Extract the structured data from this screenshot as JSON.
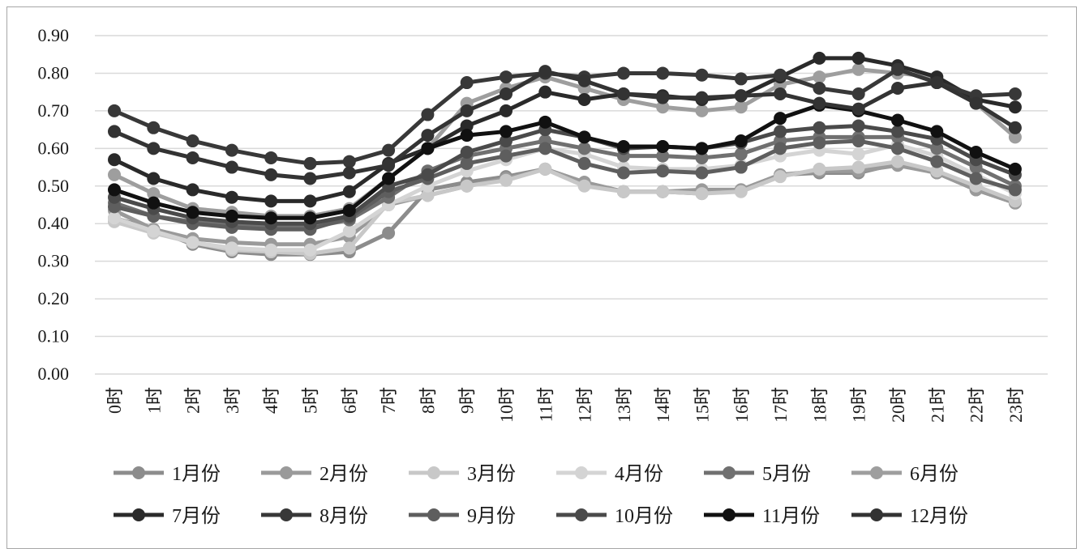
{
  "chart_data": {
    "type": "line",
    "title": "",
    "xlabel": "",
    "ylabel": "",
    "ylim": [
      0,
      0.9
    ],
    "yticks": [
      "0.00",
      "0.10",
      "0.20",
      "0.30",
      "0.40",
      "0.50",
      "0.60",
      "0.70",
      "0.80",
      "0.90"
    ],
    "grid": true,
    "legend_position": "bottom",
    "categories": [
      "0时",
      "1时",
      "2时",
      "3时",
      "4时",
      "5时",
      "6时",
      "7时",
      "8时",
      "9时",
      "10时",
      "11时",
      "12时",
      "13时",
      "14时",
      "15时",
      "16时",
      "17时",
      "18时",
      "19时",
      "20时",
      "21时",
      "22时",
      "23时"
    ],
    "series": [
      {
        "name": "1月份",
        "color": "#8c8c8c",
        "values": [
          0.415,
          0.385,
          0.345,
          0.325,
          0.318,
          0.318,
          0.325,
          0.375,
          0.49,
          0.51,
          0.525,
          0.545,
          0.51,
          0.485,
          0.485,
          0.48,
          0.49,
          0.53,
          0.535,
          0.535,
          0.56,
          0.535,
          0.49,
          0.455
        ]
      },
      {
        "name": "2月份",
        "color": "#9a9a9a",
        "values": [
          0.435,
          0.385,
          0.36,
          0.35,
          0.345,
          0.345,
          0.365,
          0.45,
          0.475,
          0.5,
          0.52,
          0.545,
          0.51,
          0.485,
          0.485,
          0.49,
          0.49,
          0.53,
          0.54,
          0.54,
          0.555,
          0.535,
          0.49,
          0.455
        ]
      },
      {
        "name": "3月份",
        "color": "#c8c8c8",
        "values": [
          0.405,
          0.375,
          0.35,
          0.33,
          0.325,
          0.32,
          0.335,
          0.455,
          0.475,
          0.5,
          0.515,
          0.545,
          0.5,
          0.485,
          0.485,
          0.48,
          0.485,
          0.525,
          0.545,
          0.55,
          0.565,
          0.54,
          0.5,
          0.46
        ]
      },
      {
        "name": "4月份",
        "color": "#d4d4d4",
        "values": [
          0.415,
          0.38,
          0.35,
          0.335,
          0.33,
          0.33,
          0.38,
          0.45,
          0.5,
          0.54,
          0.57,
          0.6,
          0.585,
          0.55,
          0.545,
          0.545,
          0.555,
          0.58,
          0.595,
          0.585,
          0.61,
          0.58,
          0.53,
          0.48
        ]
      },
      {
        "name": "5月份",
        "color": "#707070",
        "values": [
          0.455,
          0.42,
          0.405,
          0.395,
          0.39,
          0.39,
          0.41,
          0.47,
          0.54,
          0.58,
          0.6,
          0.62,
          0.6,
          0.58,
          0.58,
          0.575,
          0.585,
          0.62,
          0.63,
          0.63,
          0.63,
          0.6,
          0.55,
          0.5
        ]
      },
      {
        "name": "6月份",
        "color": "#9e9e9e",
        "values": [
          0.53,
          0.48,
          0.44,
          0.43,
          0.42,
          0.42,
          0.44,
          0.52,
          0.6,
          0.72,
          0.76,
          0.79,
          0.76,
          0.73,
          0.71,
          0.7,
          0.71,
          0.77,
          0.79,
          0.81,
          0.8,
          0.79,
          0.72,
          0.63
        ]
      },
      {
        "name": "7月份",
        "color": "#2a2a2a",
        "values": [
          0.57,
          0.52,
          0.49,
          0.47,
          0.46,
          0.46,
          0.485,
          0.56,
          0.6,
          0.66,
          0.7,
          0.75,
          0.73,
          0.745,
          0.74,
          0.73,
          0.74,
          0.79,
          0.84,
          0.84,
          0.82,
          0.79,
          0.73,
          0.71
        ]
      },
      {
        "name": "8月份",
        "color": "#383838",
        "values": [
          0.7,
          0.655,
          0.62,
          0.595,
          0.575,
          0.56,
          0.565,
          0.595,
          0.69,
          0.775,
          0.79,
          0.8,
          0.79,
          0.8,
          0.8,
          0.795,
          0.785,
          0.795,
          0.76,
          0.745,
          0.81,
          0.775,
          0.74,
          0.745
        ]
      },
      {
        "name": "9月份",
        "color": "#5e5e5e",
        "values": [
          0.445,
          0.42,
          0.4,
          0.39,
          0.385,
          0.385,
          0.415,
          0.485,
          0.52,
          0.56,
          0.58,
          0.6,
          0.56,
          0.535,
          0.54,
          0.535,
          0.55,
          0.6,
          0.615,
          0.62,
          0.6,
          0.565,
          0.52,
          0.49
        ]
      },
      {
        "name": "10月份",
        "color": "#4a4a4a",
        "values": [
          0.47,
          0.44,
          0.415,
          0.405,
          0.4,
          0.4,
          0.42,
          0.5,
          0.53,
          0.59,
          0.62,
          0.65,
          0.63,
          0.6,
          0.605,
          0.6,
          0.615,
          0.645,
          0.655,
          0.66,
          0.645,
          0.625,
          0.57,
          0.53
        ]
      },
      {
        "name": "11月份",
        "color": "#111111",
        "values": [
          0.49,
          0.455,
          0.43,
          0.42,
          0.415,
          0.415,
          0.435,
          0.52,
          0.6,
          0.635,
          0.645,
          0.67,
          0.63,
          0.605,
          0.605,
          0.6,
          0.62,
          0.68,
          0.715,
          0.7,
          0.675,
          0.645,
          0.59,
          0.545
        ]
      },
      {
        "name": "12月份",
        "color": "#333333",
        "values": [
          0.645,
          0.6,
          0.575,
          0.55,
          0.53,
          0.52,
          0.535,
          0.555,
          0.635,
          0.7,
          0.745,
          0.805,
          0.78,
          0.745,
          0.735,
          0.735,
          0.74,
          0.745,
          0.72,
          0.705,
          0.76,
          0.775,
          0.72,
          0.655
        ]
      }
    ]
  }
}
